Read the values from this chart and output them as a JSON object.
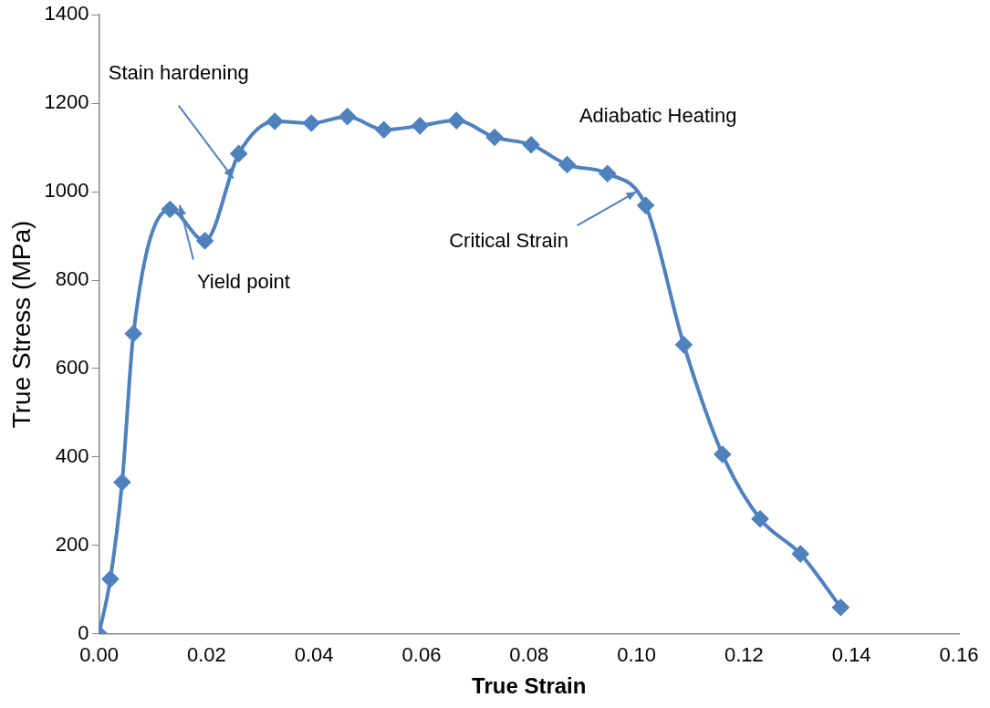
{
  "chart_data": {
    "type": "line",
    "xlabel": "True Strain",
    "ylabel": "True Stress (MPa)",
    "x": [
      0,
      0.0021,
      0.0043,
      0.0064,
      0.0132,
      0.0197,
      0.026,
      0.0327,
      0.0395,
      0.0462,
      0.053,
      0.0597,
      0.0665,
      0.0736,
      0.0804,
      0.0871,
      0.0946,
      0.1017,
      0.1088,
      0.116,
      0.123,
      0.1305,
      0.138
    ],
    "series": [
      {
        "color": "#4f81bd",
        "values": [
          0,
          124,
          343,
          679,
          960,
          889,
          1086,
          1159,
          1155,
          1170,
          1140,
          1149,
          1161,
          1123,
          1106,
          1061,
          1041,
          969,
          654,
          406,
          260,
          181,
          60
        ]
      }
    ],
    "xlim": [
      0,
      0.16
    ],
    "xticks": [
      {
        "value": 0,
        "label": "0.00"
      },
      {
        "value": 0.02,
        "label": "0.02"
      },
      {
        "value": 0.04,
        "label": "0.04"
      },
      {
        "value": 0.06,
        "label": "0.06"
      },
      {
        "value": 0.08,
        "label": "0.08"
      },
      {
        "value": 0.1,
        "label": "0.10"
      },
      {
        "value": 0.12,
        "label": "0.12"
      },
      {
        "value": 0.14,
        "label": "0.14"
      },
      {
        "value": 0.16,
        "label": "0.16"
      }
    ],
    "ylim": [
      0,
      1400
    ],
    "yticks": [
      0,
      200,
      400,
      600,
      800,
      1000,
      1200,
      1400
    ],
    "annotations": [
      {
        "text": "Stain hardening",
        "x": 0.025,
        "y": 1030
      },
      {
        "text": "Yield point",
        "x": 0.015,
        "y": 970
      },
      "Adiabatic Heating",
      {
        "text": "Critical Strain",
        "x": 0.1,
        "y": 1000
      }
    ],
    "grid": false,
    "legend": false,
    "marker": "diamond",
    "line_style": "solid"
  }
}
